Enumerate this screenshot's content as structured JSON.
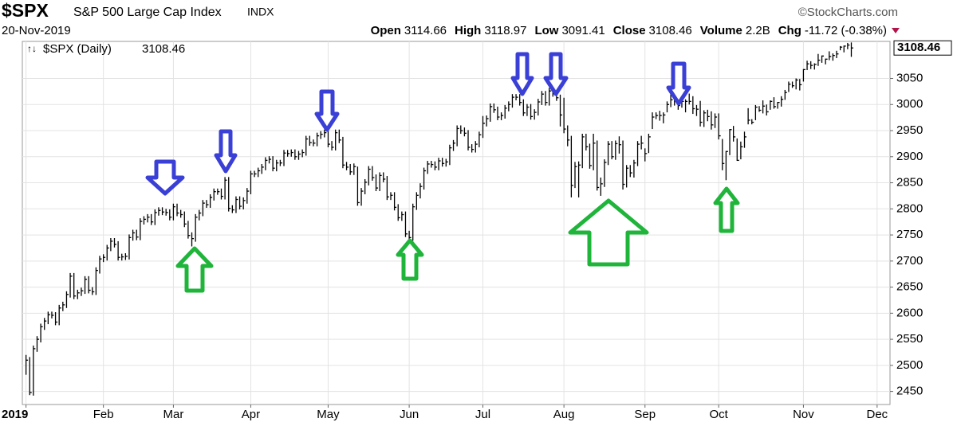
{
  "chart_data": {
    "type": "hlc",
    "title": "$SPX",
    "subtitle": "S&P 500 Large Cap Index",
    "exchange": "INDX",
    "credit": "©StockCharts.com",
    "date": "20-Nov-2019",
    "fields": [
      {
        "label": "Open",
        "value": 3114.66
      },
      {
        "label": "High",
        "value": 3118.97
      },
      {
        "label": "Low",
        "value": 3091.41
      },
      {
        "label": "Close",
        "value": 3108.46
      },
      {
        "label": "Volume",
        "value": "2.2B"
      },
      {
        "label": "Chg",
        "value": "-11.72 (-0.38%)"
      }
    ],
    "grid": true,
    "xlim": [
      -1,
      234.5
    ],
    "ylim": [
      2425,
      3121
    ],
    "yticks": [
      2450,
      2500,
      2550,
      2600,
      2650,
      2700,
      2750,
      2800,
      2850,
      2900,
      2950,
      3000,
      3050
    ],
    "xticks": [
      {
        "value": 0,
        "label": "2019"
      },
      {
        "value": 21,
        "label": "Feb"
      },
      {
        "value": 40,
        "label": "Mar"
      },
      {
        "value": 61,
        "label": "Apr"
      },
      {
        "value": 82,
        "label": "May"
      },
      {
        "value": 104,
        "label": "Jun"
      },
      {
        "value": 124,
        "label": "Jul"
      },
      {
        "value": 146,
        "label": "Aug"
      },
      {
        "value": 168,
        "label": "Sep"
      },
      {
        "value": 188,
        "label": "Oct"
      },
      {
        "value": 211,
        "label": "Nov"
      },
      {
        "value": 231,
        "label": "Dec"
      }
    ],
    "x": [
      0,
      1,
      2,
      3,
      4,
      5,
      6,
      7,
      8,
      9,
      10,
      11,
      12,
      13,
      14,
      15,
      16,
      17,
      18,
      19,
      20,
      21,
      22,
      23,
      24,
      25,
      26,
      27,
      28,
      29,
      30,
      31,
      32,
      33,
      34,
      35,
      36,
      37,
      38,
      39,
      40,
      41,
      42,
      43,
      44,
      45,
      46,
      47,
      48,
      49,
      50,
      51,
      52,
      53,
      54,
      55,
      56,
      57,
      58,
      59,
      60,
      61,
      62,
      63,
      64,
      65,
      66,
      67,
      68,
      69,
      70,
      71,
      72,
      73,
      74,
      75,
      76,
      77,
      78,
      79,
      80,
      81,
      82,
      83,
      84,
      85,
      86,
      87,
      88,
      89,
      90,
      91,
      92,
      93,
      94,
      95,
      96,
      97,
      98,
      99,
      100,
      101,
      102,
      103,
      104,
      105,
      106,
      107,
      108,
      109,
      110,
      111,
      112,
      113,
      114,
      115,
      116,
      117,
      118,
      119,
      120,
      121,
      122,
      123,
      124,
      125,
      126,
      127,
      128,
      129,
      130,
      131,
      132,
      133,
      134,
      135,
      136,
      137,
      138,
      139,
      140,
      141,
      142,
      143,
      144,
      145,
      146,
      147,
      148,
      149,
      150,
      151,
      152,
      153,
      154,
      155,
      156,
      157,
      158,
      159,
      160,
      161,
      162,
      163,
      164,
      165,
      166,
      167,
      168,
      169,
      170,
      171,
      172,
      173,
      174,
      175,
      176,
      177,
      178,
      179,
      180,
      181,
      182,
      183,
      184,
      185,
      186,
      187,
      188,
      189,
      190,
      191,
      192,
      193,
      194,
      195,
      196,
      197,
      198,
      199,
      200,
      201,
      202,
      203,
      204,
      205,
      206,
      207,
      208,
      209,
      210,
      211,
      212,
      213,
      214,
      215,
      216,
      217,
      218,
      219,
      220,
      221,
      222,
      223,
      224
    ],
    "series": [
      {
        "name": "$SPX (Daily)",
        "color": "#000000",
        "high": [
          2520,
          2516,
          2538,
          2556,
          2580,
          2591,
          2603,
          2603,
          2602,
          2616,
          2622,
          2642,
          2677,
          2677,
          2645,
          2649,
          2671,
          2671,
          2650,
          2688,
          2710,
          2713,
          2731,
          2744,
          2744,
          2738,
          2714,
          2715,
          2751,
          2760,
          2760,
          2782,
          2786,
          2790,
          2790,
          2799,
          2803,
          2803,
          2800,
          2799,
          2810,
          2810,
          2798,
          2795,
          2777,
          2755,
          2790,
          2798,
          2817,
          2817,
          2828,
          2839,
          2839,
          2839,
          2861,
          2861,
          2807,
          2824,
          2824,
          2822,
          2840,
          2873,
          2873,
          2879,
          2886,
          2899,
          2901,
          2901,
          2894,
          2894,
          2913,
          2913,
          2914,
          2914,
          2911,
          2914,
          2940,
          2940,
          2933,
          2946,
          2949,
          2952,
          2954,
          2930,
          2952,
          2952,
          2938,
          2890,
          2886,
          2887,
          2881,
          2840,
          2857,
          2882,
          2882,
          2866,
          2870,
          2870,
          2863,
          2832,
          2832,
          2809,
          2795,
          2795,
          2758,
          2810,
          2832,
          2849,
          2879,
          2892,
          2892,
          2891,
          2898,
          2898,
          2896,
          2923,
          2932,
          2960,
          2960,
          2956,
          2951,
          2924,
          2930,
          2948,
          2978,
          2979,
          3002,
          3002,
          2996,
          2985,
          2999,
          3006,
          3020,
          3020,
          3020,
          3010,
          3001,
          3001,
          2991,
          3011,
          3026,
          3026,
          3032,
          3032,
          3027,
          3019,
          3013,
          2960,
          2940,
          2890,
          2891,
          2944,
          2944,
          2925,
          2944,
          2931,
          2860,
          2895,
          2930,
          2930,
          2931,
          2939,
          2931,
          2884,
          2884,
          2894,
          2930,
          2940,
          2916,
          2944,
          2985,
          2985,
          2988,
          2985,
          3006,
          3020,
          3021,
          3008,
          3012,
          3010,
          3021,
          3016,
          2999,
          3007,
          2989,
          2990,
          2987,
          2983,
          2983,
          2934,
          2911,
          2953,
          2959,
          2935,
          2929,
          2948,
          2993,
          2972,
          2999,
          2997,
          3008,
          3000,
          3008,
          3014,
          3005,
          3016,
          3028,
          3044,
          3044,
          3050,
          3049,
          3068,
          3084,
          3083,
          3079,
          3097,
          3094,
          3088,
          3102,
          3098,
          3103,
          3112,
          3113,
          3118,
          3118.97
        ],
        "low": [
          2482,
          2443,
          2442,
          2526,
          2544,
          2568,
          2579,
          2590,
          2577,
          2577,
          2604,
          2610,
          2630,
          2627,
          2627,
          2633,
          2637,
          2638,
          2635,
          2635,
          2676,
          2698,
          2701,
          2719,
          2726,
          2701,
          2701,
          2702,
          2703,
          2739,
          2740,
          2740,
          2770,
          2774,
          2769,
          2769,
          2787,
          2788,
          2787,
          2778,
          2778,
          2786,
          2783,
          2765,
          2743,
          2728,
          2737,
          2778,
          2786,
          2802,
          2802,
          2816,
          2827,
          2818,
          2818,
          2795,
          2792,
          2792,
          2799,
          2799,
          2810,
          2828,
          2861,
          2861,
          2867,
          2874,
          2887,
          2872,
          2872,
          2882,
          2882,
          2900,
          2900,
          2894,
          2894,
          2899,
          2902,
          2921,
          2920,
          2920,
          2934,
          2937,
          2918,
          2912,
          2912,
          2926,
          2878,
          2874,
          2865,
          2865,
          2806,
          2806,
          2828,
          2845,
          2854,
          2834,
          2834,
          2851,
          2817,
          2817,
          2797,
          2777,
          2777,
          2746,
          2729,
          2739,
          2798,
          2820,
          2837,
          2867,
          2879,
          2874,
          2874,
          2881,
          2881,
          2884,
          2911,
          2920,
          2944,
          2939,
          2912,
          2908,
          2908,
          2918,
          2936,
          2958,
          2967,
          2984,
          2970,
          2970,
          2973,
          2987,
          2994,
          3008,
          2998,
          2978,
          2978,
          2971,
          2971,
          2979,
          2999,
          2998,
          2998,
          3015,
          3007,
          2958,
          2945,
          2920,
          2822,
          2840,
          2822,
          2878,
          2912,
          2877,
          2874,
          2835,
          2825,
          2842,
          2884,
          2895,
          2894,
          2906,
          2837,
          2841,
          2861,
          2860,
          2882,
          2914,
          2891,
          2907,
          2953,
          2972,
          2969,
          2964,
          2985,
          2995,
          2998,
          2990,
          2994,
          2985,
          3000,
          2982,
          2978,
          2958,
          2957,
          2968,
          2952,
          2955,
          2933,
          2874,
          2855,
          2903,
          2929,
          2892,
          2895,
          2917,
          2962,
          2962,
          2970,
          2986,
          2983,
          2979,
          2990,
          2992,
          2992,
          2996,
          3009,
          3024,
          3032,
          3029,
          3027,
          3044,
          3066,
          3068,
          3067,
          3074,
          3080,
          3077,
          3085,
          3084,
          3089,
          3104,
          3100,
          3106,
          3091.41
        ],
        "close": [
          2510,
          2448,
          2532,
          2550,
          2574,
          2585,
          2597,
          2596,
          2583,
          2610,
          2616,
          2636,
          2671,
          2633,
          2639,
          2643,
          2665,
          2644,
          2641,
          2682,
          2704,
          2707,
          2725,
          2738,
          2732,
          2707,
          2708,
          2709,
          2745,
          2754,
          2746,
          2776,
          2780,
          2784,
          2775,
          2793,
          2797,
          2794,
          2793,
          2784,
          2804,
          2792,
          2789,
          2771,
          2749,
          2743,
          2784,
          2792,
          2811,
          2808,
          2822,
          2833,
          2833,
          2824,
          2855,
          2801,
          2798,
          2818,
          2805,
          2816,
          2834,
          2867,
          2867,
          2873,
          2880,
          2893,
          2895,
          2878,
          2888,
          2888,
          2907,
          2906,
          2908,
          2900,
          2905,
          2908,
          2934,
          2927,
          2926,
          2940,
          2943,
          2946,
          2924,
          2918,
          2946,
          2932,
          2884,
          2880,
          2871,
          2881,
          2812,
          2834,
          2851,
          2876,
          2860,
          2840,
          2864,
          2857,
          2823,
          2826,
          2803,
          2783,
          2789,
          2752,
          2745,
          2804,
          2826,
          2843,
          2873,
          2886,
          2885,
          2880,
          2892,
          2887,
          2890,
          2917,
          2926,
          2954,
          2950,
          2945,
          2918,
          2914,
          2924,
          2942,
          2964,
          2973,
          2996,
          2990,
          2976,
          2979,
          2993,
          3000,
          3014,
          3014,
          3004,
          2984,
          2995,
          2977,
          2985,
          3005,
          3020,
          3004,
          3026,
          3021,
          3013,
          2980,
          2953,
          2932,
          2845,
          2881,
          2884,
          2938,
          2919,
          2883,
          2926,
          2841,
          2848,
          2889,
          2924,
          2900,
          2925,
          2923,
          2847,
          2878,
          2869,
          2888,
          2924,
          2926,
          2906,
          2938,
          2976,
          2979,
          2979,
          2980,
          3000,
          3009,
          3007,
          2998,
          3006,
          3006,
          3006,
          2992,
          2991,
          2966,
          2984,
          2977,
          2961,
          2976,
          2940,
          2887,
          2910,
          2952,
          2938,
          2893,
          2919,
          2938,
          2970,
          2966,
          2995,
          2989,
          2997,
          2986,
          3006,
          2996,
          3004,
          3010,
          3023,
          3039,
          3036,
          3047,
          3038,
          3067,
          3078,
          3075,
          3077,
          3085,
          3093,
          3087,
          3092,
          3094,
          3097,
          3110,
          3112,
          3114,
          3108.46
        ]
      }
    ]
  }
}
